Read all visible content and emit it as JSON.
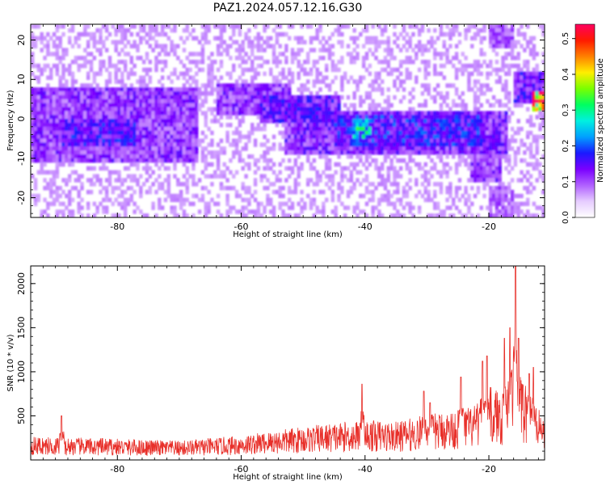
{
  "title": "PAZ1.2024.057.12.16.G30",
  "chart_data": [
    {
      "type": "heatmap",
      "xlabel": "Height of straight line (km)",
      "ylabel": "Frequency (Hz)",
      "xlim": [
        -94,
        -11
      ],
      "ylim": [
        -25,
        24
      ],
      "xticks": [
        -80,
        -60,
        -40,
        -20
      ],
      "xtick_labels": [
        "-80",
        "-60",
        "-40",
        "-20"
      ],
      "yticks": [
        -20,
        -10,
        0,
        10,
        20
      ],
      "ytick_labels": [
        "-20",
        "-10",
        "0",
        "10",
        "20"
      ],
      "colorbar": {
        "label": "Normalized spectral amplitude",
        "range": [
          0,
          0.54
        ],
        "ticks": [
          0.0,
          0.1,
          0.2,
          0.3,
          0.4,
          0.5
        ],
        "tick_labels": [
          "0.0",
          "0.1",
          "0.2",
          "0.3",
          "0.4",
          "0.5"
        ],
        "colormap": "gist_rainbow_r",
        "colors": [
          "#ffffff",
          "#e6ccff",
          "#b060ff",
          "#7a00ff",
          "#1a1aff",
          "#00a0ff",
          "#00f0e0",
          "#00ff60",
          "#7aff00",
          "#ffee00",
          "#ff8000",
          "#ff1a00",
          "#ff0060"
        ]
      },
      "features": [
        {
          "x": [
            -94,
            -68
          ],
          "y": [
            -9,
            6
          ],
          "level": 0.12
        },
        {
          "x": [
            -88,
            -78
          ],
          "y": [
            -5,
            -2
          ],
          "level": 0.16
        },
        {
          "x": [
            -63,
            -53
          ],
          "y": [
            3,
            7
          ],
          "level": 0.12
        },
        {
          "x": [
            -56,
            -45
          ],
          "y": [
            1,
            4
          ],
          "level": 0.15
        },
        {
          "x": [
            -52,
            -18
          ],
          "y": [
            -7,
            0
          ],
          "level": 0.13
        },
        {
          "x": [
            -44,
            -22
          ],
          "y": [
            -5,
            -1
          ],
          "level": 0.17
        },
        {
          "x": [
            -22,
            -19
          ],
          "y": [
            -14,
            -6
          ],
          "level": 0.12
        },
        {
          "x": [
            -19,
            -17
          ],
          "y": [
            -23,
            -19
          ],
          "level": 0.1
        },
        {
          "x": [
            -19,
            -17
          ],
          "y": [
            20,
            23
          ],
          "level": 0.1
        },
        {
          "x": [
            -15,
            -11
          ],
          "y": [
            6,
            10
          ],
          "level": 0.15
        },
        {
          "x": [
            -12,
            -11
          ],
          "y": [
            4,
            5
          ],
          "level": 0.48
        },
        {
          "x": [
            -41,
            -40
          ],
          "y": [
            -3,
            -2
          ],
          "level": 0.27
        }
      ]
    },
    {
      "type": "line",
      "xlabel": "Height of straight line (km)",
      "ylabel": "SNR (10 * v/v)",
      "xlim": [
        -94,
        -11
      ],
      "ylim": [
        0,
        2200
      ],
      "xticks": [
        -80,
        -60,
        -40,
        -20
      ],
      "xtick_labels": [
        "-80",
        "-60",
        "-40",
        "-20"
      ],
      "yticks": [
        500,
        1000,
        1500,
        2000
      ],
      "ytick_labels": [
        "500",
        "1000",
        "1500",
        "2000"
      ],
      "color": "#e8302a",
      "envelope": [
        {
          "x": -94,
          "y": 220
        },
        {
          "x": -80,
          "y": 200
        },
        {
          "x": -70,
          "y": 180
        },
        {
          "x": -60,
          "y": 230
        },
        {
          "x": -52,
          "y": 300
        },
        {
          "x": -45,
          "y": 350
        },
        {
          "x": -40,
          "y": 380
        },
        {
          "x": -35,
          "y": 360
        },
        {
          "x": -30,
          "y": 430
        },
        {
          "x": -25,
          "y": 480
        },
        {
          "x": -22,
          "y": 520
        },
        {
          "x": -20,
          "y": 700
        },
        {
          "x": -18,
          "y": 650
        },
        {
          "x": -16,
          "y": 950
        },
        {
          "x": -14,
          "y": 700
        },
        {
          "x": -12,
          "y": 480
        },
        {
          "x": -11,
          "y": 420
        }
      ],
      "peaks": [
        {
          "x": -89,
          "y": 500
        },
        {
          "x": -40.5,
          "y": 860
        },
        {
          "x": -30.5,
          "y": 780
        },
        {
          "x": -29.5,
          "y": 650
        },
        {
          "x": -24.5,
          "y": 940
        },
        {
          "x": -21,
          "y": 1120
        },
        {
          "x": -20.3,
          "y": 1180
        },
        {
          "x": -17.5,
          "y": 1380
        },
        {
          "x": -16.6,
          "y": 1500
        },
        {
          "x": -15.7,
          "y": 2200
        },
        {
          "x": -15.2,
          "y": 1380
        },
        {
          "x": -13.5,
          "y": 980
        },
        {
          "x": -12.8,
          "y": 1050
        }
      ]
    }
  ]
}
